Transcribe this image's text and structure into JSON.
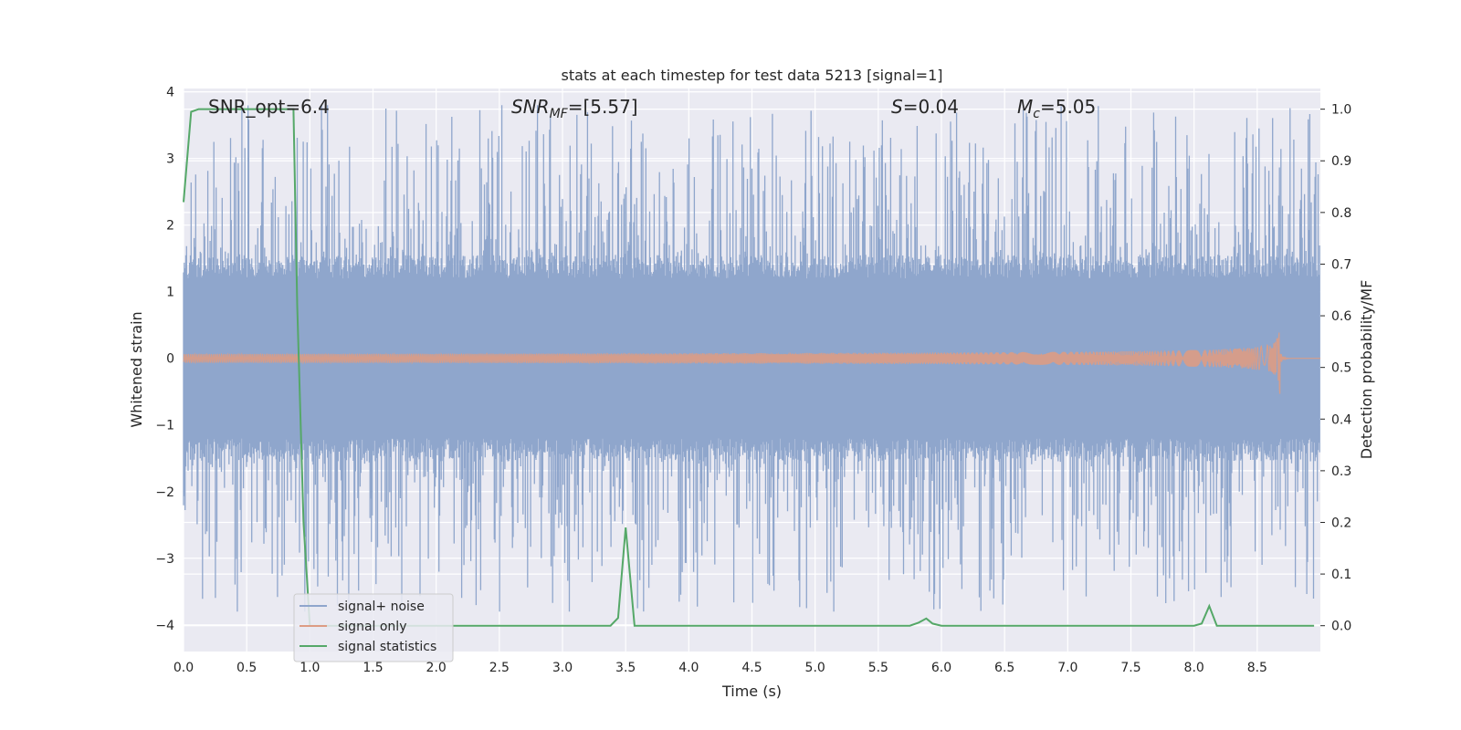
{
  "chart_data": {
    "type": "line",
    "title": "stats at each timestep for test data 5213 [signal=1]",
    "xlabel": "Time (s)",
    "ylabel": "Whitened strain",
    "ylabel_right": "Detection probability/MF",
    "xlim": [
      0,
      9
    ],
    "ylim": [
      -4.4,
      4.05
    ],
    "ylim_right": [
      -0.05,
      1.04
    ],
    "x_ticks": [
      "0.0",
      "0.5",
      "1.0",
      "1.5",
      "2.0",
      "2.5",
      "3.0",
      "3.5",
      "4.0",
      "4.5",
      "5.0",
      "5.5",
      "6.0",
      "6.5",
      "7.0",
      "7.5",
      "8.0",
      "8.5"
    ],
    "y_ticks": [
      "4",
      "3",
      "2",
      "1",
      "0",
      "−1",
      "−2",
      "−3",
      "−4"
    ],
    "y_right_ticks": [
      "1.0",
      "0.9",
      "0.8",
      "0.7",
      "0.6",
      "0.5",
      "0.4",
      "0.3",
      "0.2",
      "0.1",
      "0.0"
    ],
    "grid": true,
    "legend_position": "lower-left",
    "annotations": {
      "snr_opt": "SNR_opt=6.4",
      "snr_mf_sym": "SNR",
      "snr_mf_sub": "MF",
      "snr_mf_val": "=[5.57]",
      "s_sym": "S",
      "s_val": "=0.04",
      "mc_sym": "M",
      "mc_sub": "c",
      "mc_val": "=5.05"
    },
    "series": [
      {
        "name": "signal+ noise",
        "axis": "left",
        "color": "#8fa6cc",
        "description_values": "noise band approx ±1.3 with peaks to about ±3.8",
        "envelope_max": 3.8,
        "envelope_min": -3.8
      },
      {
        "name": "signal only",
        "axis": "left",
        "color": "#dd9c84",
        "chirp_end_time": 8.68,
        "chirp_peak_amplitude": 0.65
      },
      {
        "name": "signal statistics",
        "axis": "right",
        "color": "#55a868",
        "x": [
          0.0,
          0.06,
          0.12,
          0.5,
          0.87,
          0.9,
          0.95,
          1.0,
          1.1,
          2.0,
          3.0,
          3.38,
          3.44,
          3.5,
          3.57,
          3.65,
          4.0,
          5.0,
          5.75,
          5.82,
          5.88,
          5.93,
          6.0,
          7.0,
          8.0,
          8.06,
          8.12,
          8.18,
          8.25,
          8.95
        ],
        "values": [
          0.82,
          0.995,
          1.0,
          1.0,
          1.0,
          0.62,
          0.2,
          0.0,
          0.0,
          0.0,
          0.0,
          0.0,
          0.015,
          0.19,
          0.0,
          0.0,
          0.0,
          0.0,
          0.0,
          0.006,
          0.014,
          0.004,
          0.0,
          0.0,
          0.0,
          0.004,
          0.038,
          0.0,
          0.0,
          0.0
        ]
      }
    ],
    "legend": [
      "signal+ noise",
      "signal only",
      "signal statistics"
    ]
  }
}
